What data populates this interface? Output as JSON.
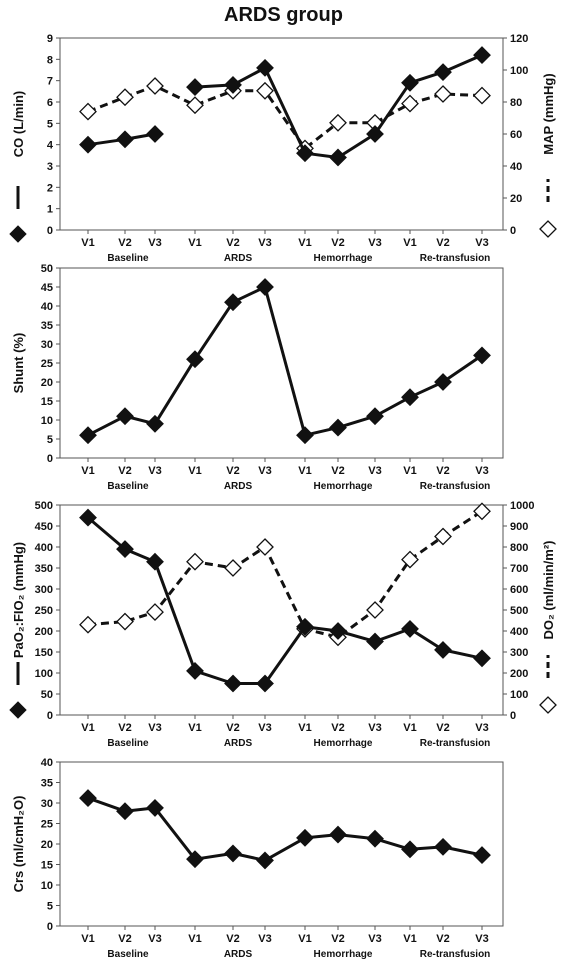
{
  "figure": {
    "title": "ARDS group"
  },
  "chart_data": [
    {
      "id": "co-map",
      "type": "line",
      "title": "",
      "categories": [
        "V1",
        "V2",
        "V3",
        "V1",
        "V2",
        "V3",
        "V1",
        "V2",
        "V3",
        "V1",
        "V2",
        "V3"
      ],
      "groups": [
        "Baseline",
        "ARDS",
        "Hemorrhage",
        "Re-transfusion"
      ],
      "yleft": {
        "label": "CO (L/min)",
        "min": 0,
        "max": 9,
        "ticks": [
          0,
          1,
          2,
          3,
          4,
          5,
          6,
          7,
          8,
          9
        ]
      },
      "yright": {
        "label": "MAP (mmHg)",
        "min": 0,
        "max": 120,
        "ticks": [
          0,
          20,
          40,
          60,
          80,
          100,
          120
        ]
      },
      "series": [
        {
          "name": "CO",
          "axis": "left",
          "style": "solid",
          "marker": "diamond-filled",
          "breaks_after": [
            2
          ],
          "values": [
            4.0,
            4.25,
            4.5,
            6.7,
            6.8,
            7.6,
            3.6,
            3.4,
            4.5,
            6.9,
            7.4,
            8.2
          ]
        },
        {
          "name": "MAP",
          "axis": "right",
          "style": "dashed",
          "marker": "diamond-open",
          "breaks_after": [],
          "values": [
            74,
            83,
            90,
            78,
            87,
            87,
            51,
            67,
            67,
            79,
            85,
            84
          ]
        }
      ]
    },
    {
      "id": "shunt",
      "type": "line",
      "title": "",
      "categories": [
        "V1",
        "V2",
        "V3",
        "V1",
        "V2",
        "V3",
        "V1",
        "V2",
        "V3",
        "V1",
        "V2",
        "V3"
      ],
      "groups": [
        "Baseline",
        "ARDS",
        "Hemorrhage",
        "Re-transfusion"
      ],
      "yleft": {
        "label": "Shunt (%)",
        "min": 0,
        "max": 50,
        "ticks": [
          0,
          5,
          10,
          15,
          20,
          25,
          30,
          35,
          40,
          45,
          50
        ]
      },
      "series": [
        {
          "name": "Shunt",
          "axis": "left",
          "style": "solid",
          "marker": "diamond-filled",
          "breaks_after": [],
          "values": [
            6,
            11,
            9,
            26,
            41,
            45,
            6,
            8,
            11,
            16,
            20,
            27
          ]
        }
      ]
    },
    {
      "id": "pf-do2",
      "type": "line",
      "title": "",
      "categories": [
        "V1",
        "V2",
        "V3",
        "V1",
        "V2",
        "V3",
        "V1",
        "V2",
        "V3",
        "V1",
        "V2",
        "V3"
      ],
      "groups": [
        "Baseline",
        "ARDS",
        "Hemorrhage",
        "Re-transfusion"
      ],
      "yleft": {
        "label": "PaO₂:FIO₂ (mmHg)",
        "min": 0,
        "max": 500,
        "ticks": [
          0,
          50,
          100,
          150,
          200,
          250,
          300,
          350,
          400,
          450,
          500
        ]
      },
      "yright": {
        "label": "DO₂ (ml/min/m²)",
        "min": 0,
        "max": 1000,
        "ticks": [
          0,
          100,
          200,
          300,
          400,
          500,
          600,
          700,
          800,
          900,
          1000
        ]
      },
      "series": [
        {
          "name": "PaO2:FIO2",
          "axis": "left",
          "style": "solid",
          "marker": "diamond-filled",
          "breaks_after": [],
          "values": [
            470,
            395,
            365,
            105,
            75,
            75,
            210,
            200,
            175,
            205,
            155,
            135
          ]
        },
        {
          "name": "DO2",
          "axis": "right",
          "style": "dashed",
          "marker": "diamond-open",
          "breaks_after": [],
          "values": [
            430,
            445,
            490,
            730,
            700,
            800,
            410,
            370,
            500,
            740,
            850,
            970
          ]
        }
      ]
    },
    {
      "id": "crs",
      "type": "line",
      "title": "",
      "categories": [
        "V1",
        "V2",
        "V3",
        "V1",
        "V2",
        "V3",
        "V1",
        "V2",
        "V3",
        "V1",
        "V2",
        "V3"
      ],
      "groups": [
        "Baseline",
        "ARDS",
        "Hemorrhage",
        "Re-transfusion"
      ],
      "yleft": {
        "label": "Crs (ml/cmH₂O)",
        "min": 0,
        "max": 40,
        "ticks": [
          0,
          5,
          10,
          15,
          20,
          25,
          30,
          35,
          40
        ]
      },
      "series": [
        {
          "name": "Crs",
          "axis": "left",
          "style": "solid",
          "marker": "diamond-filled",
          "breaks_after": [],
          "values": [
            31.2,
            28.0,
            28.8,
            16.3,
            17.7,
            16.0,
            21.5,
            22.3,
            21.3,
            18.7,
            19.3,
            17.3
          ]
        }
      ]
    }
  ]
}
